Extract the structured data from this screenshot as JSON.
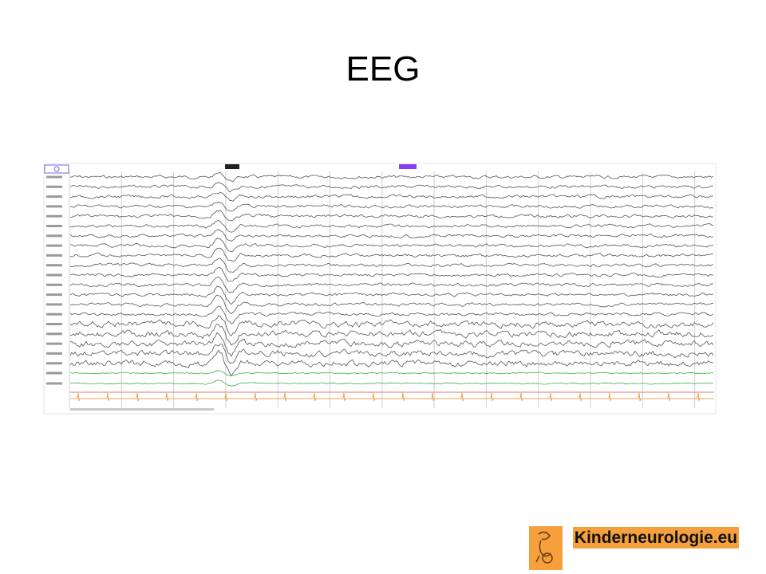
{
  "slide": {
    "title": "EEG"
  },
  "logo": {
    "text": "Kinderneurologie.eu"
  }
}
